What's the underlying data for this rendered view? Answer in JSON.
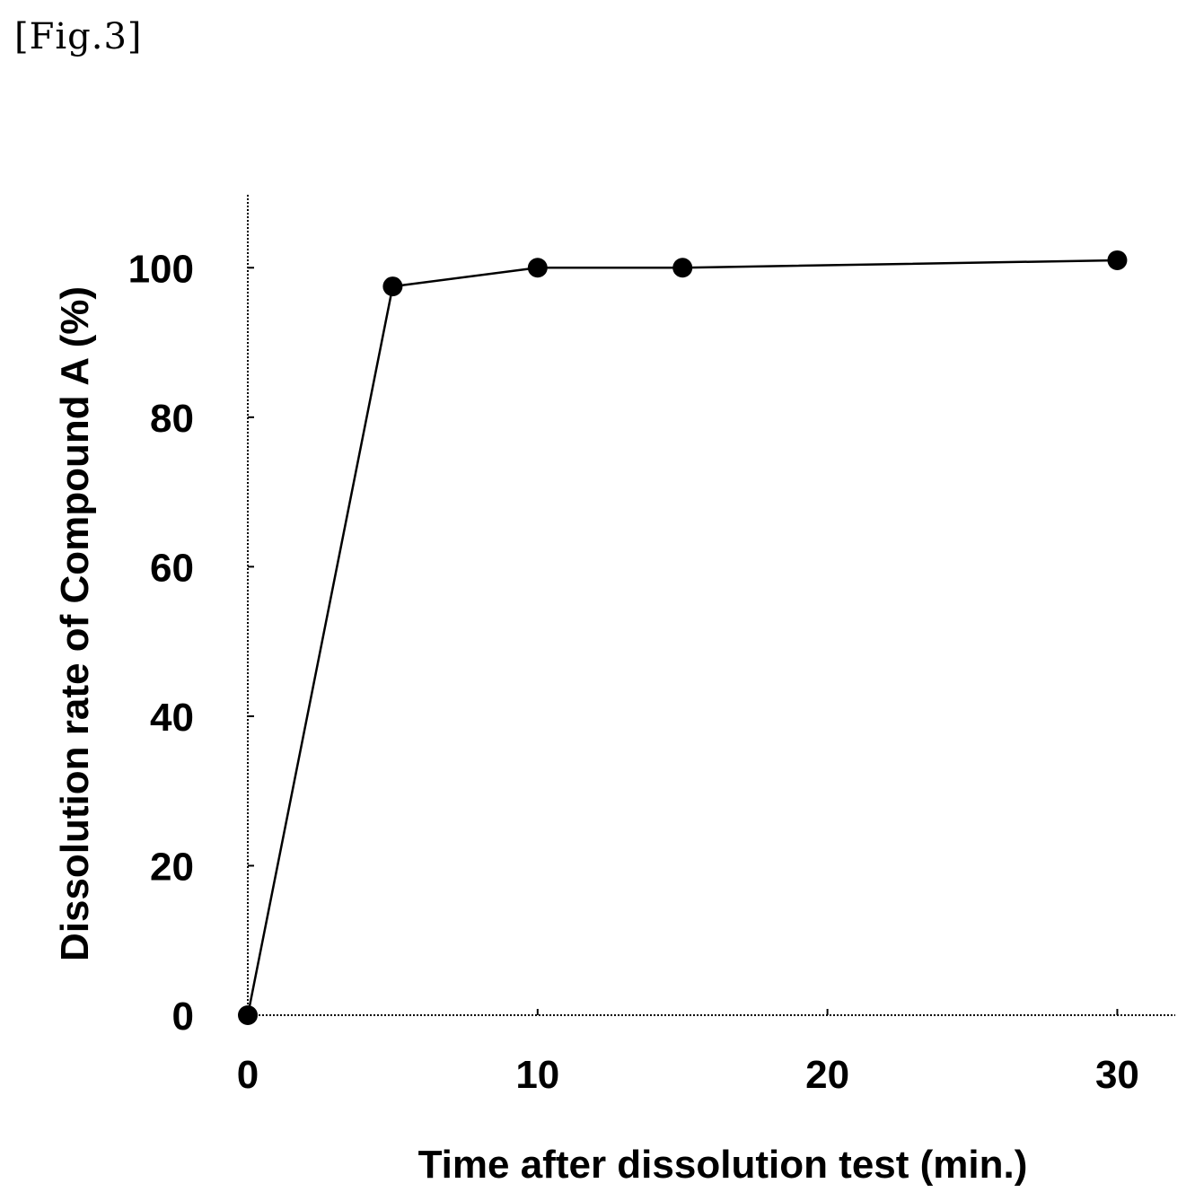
{
  "figure_label": "[Fig.3]",
  "chart_data": {
    "type": "line",
    "title": "",
    "xlabel": "Time after dissolution test (min.)",
    "ylabel": "Dissolution rate of Compound A (%)",
    "x": [
      0,
      5,
      10,
      15,
      30
    ],
    "series": [
      {
        "values": [
          0,
          97.5,
          100,
          100,
          101
        ]
      }
    ],
    "xticks": [
      "0",
      "10",
      "20",
      "30"
    ],
    "yticks": [
      "0",
      "20",
      "40",
      "60",
      "80",
      "100"
    ],
    "xlim": [
      0,
      32
    ],
    "ylim": [
      0,
      110
    ],
    "grid": false,
    "marker": "filled-circle",
    "color": "#000000"
  }
}
